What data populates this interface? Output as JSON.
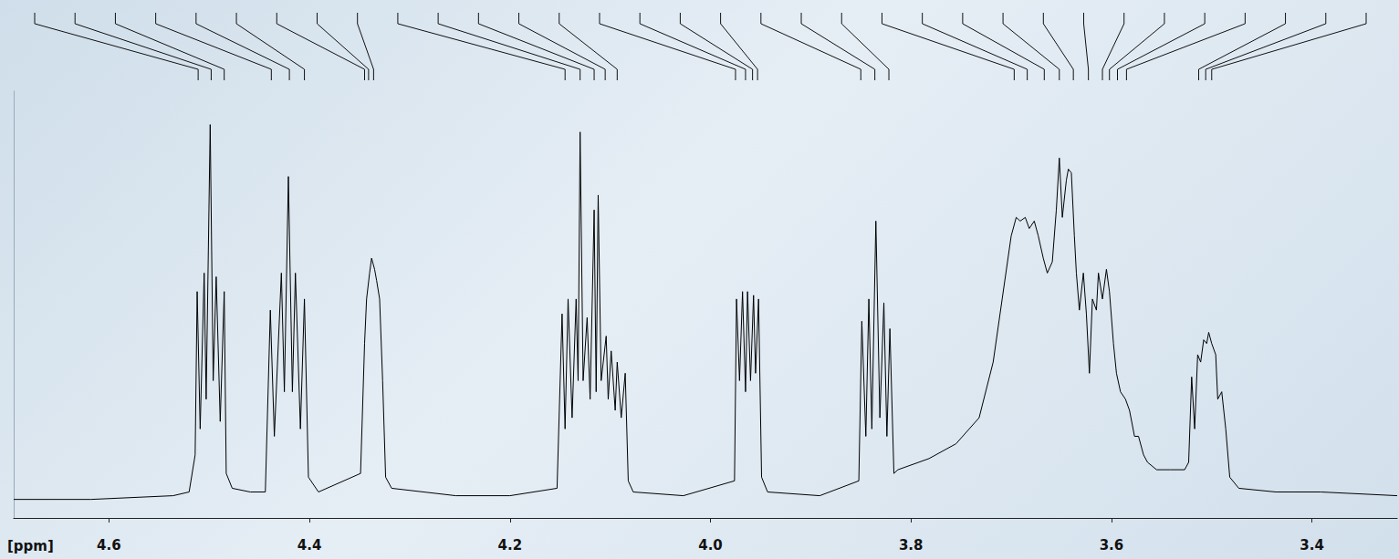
{
  "chart_data": {
    "type": "line",
    "x_label": "[ppm]",
    "color": "#000000",
    "grid": false,
    "tick_labels": "x",
    "xlim": [
      4.695,
      3.315
    ],
    "xticks": [
      4.6,
      4.4,
      4.2,
      {
        "value": 4.0,
        "label": "4.0"
      },
      3.8,
      3.6,
      3.4
    ],
    "ylim": [
      -6,
      109
    ],
    "yticks": [],
    "x": [
      4.695,
      4.618,
      4.536,
      4.52,
      4.514,
      4.512,
      4.509,
      4.505,
      4.503,
      4.499,
      4.496,
      4.493,
      4.489,
      4.485,
      4.483,
      4.477,
      4.459,
      4.444,
      4.439,
      4.435,
      4.428,
      4.425,
      4.421,
      4.417,
      4.414,
      4.409,
      4.405,
      4.401,
      4.391,
      4.349,
      4.345,
      4.343,
      4.34,
      4.338,
      4.335,
      4.333,
      4.33,
      4.327,
      4.324,
      4.318,
      4.254,
      4.2,
      4.153,
      4.148,
      4.145,
      4.142,
      4.138,
      4.134,
      4.132,
      4.13,
      4.127,
      4.123,
      4.12,
      4.116,
      4.114,
      4.112,
      4.109,
      4.104,
      4.102,
      4.099,
      4.095,
      4.093,
      4.089,
      4.085,
      4.082,
      4.077,
      4.027,
      3.976,
      3.974,
      3.971,
      3.968,
      3.965,
      3.963,
      3.96,
      3.957,
      3.955,
      3.952,
      3.949,
      3.943,
      3.891,
      3.852,
      3.849,
      3.845,
      3.842,
      3.839,
      3.835,
      3.831,
      3.827,
      3.824,
      3.821,
      3.817,
      3.813,
      3.782,
      3.755,
      3.732,
      3.718,
      3.709,
      3.7,
      3.695,
      3.691,
      3.686,
      3.682,
      3.677,
      3.673,
      3.668,
      3.664,
      3.659,
      3.655,
      3.652,
      3.649,
      3.645,
      3.643,
      3.64,
      3.637,
      3.635,
      3.632,
      3.628,
      3.625,
      3.622,
      3.619,
      3.615,
      3.613,
      3.609,
      3.605,
      3.602,
      3.598,
      3.595,
      3.591,
      3.586,
      3.582,
      3.577,
      3.573,
      3.568,
      3.564,
      3.555,
      3.541,
      3.527,
      3.523,
      3.52,
      3.517,
      3.514,
      3.511,
      3.508,
      3.505,
      3.503,
      3.5,
      3.496,
      3.494,
      3.49,
      3.486,
      3.482,
      3.473,
      3.436,
      3.391,
      3.315
    ],
    "values": [
      -1,
      -1,
      0,
      1,
      11,
      55,
      18,
      60,
      26,
      100,
      31,
      59,
      20,
      55,
      6,
      2,
      1,
      1,
      50,
      16,
      60,
      28,
      86,
      28,
      60,
      18,
      53,
      5,
      1,
      6,
      41,
      53,
      60,
      64,
      61,
      58,
      53,
      31,
      5,
      2,
      0,
      0,
      2,
      49,
      18,
      53,
      21,
      53,
      31,
      98,
      31,
      48,
      26,
      77,
      28,
      81,
      31,
      43,
      26,
      39,
      23,
      36,
      21,
      33,
      4,
      1,
      0,
      4,
      53,
      31,
      55,
      28,
      55,
      31,
      54,
      33,
      53,
      5,
      1,
      0,
      4,
      47,
      16,
      53,
      18,
      74,
      21,
      52,
      16,
      45,
      6,
      7,
      10,
      14,
      21,
      36,
      53,
      70,
      75,
      74,
      75,
      72,
      74,
      70,
      64,
      60,
      63,
      77,
      91,
      75,
      85,
      88,
      87,
      70,
      60,
      50,
      60,
      49,
      33,
      53,
      50,
      60,
      53,
      61,
      55,
      41,
      33,
      28,
      26,
      23,
      16,
      16,
      11,
      9,
      7,
      7,
      7,
      9,
      32,
      18,
      38,
      36,
      42,
      41,
      44,
      41,
      38,
      26,
      28,
      18,
      5,
      2,
      1,
      1,
      0
    ],
    "peak_positions": [
      4.511,
      4.498,
      4.485,
      4.438,
      4.42,
      4.405,
      4.345,
      4.341,
      4.336,
      4.145,
      4.13,
      4.116,
      4.105,
      4.093,
      3.975,
      3.965,
      3.958,
      3.953,
      3.85,
      3.836,
      3.822,
      3.697,
      3.684,
      3.667,
      3.652,
      3.638,
      3.623,
      3.609,
      3.602,
      3.594,
      3.585,
      3.513,
      3.506,
      3.5
    ]
  }
}
